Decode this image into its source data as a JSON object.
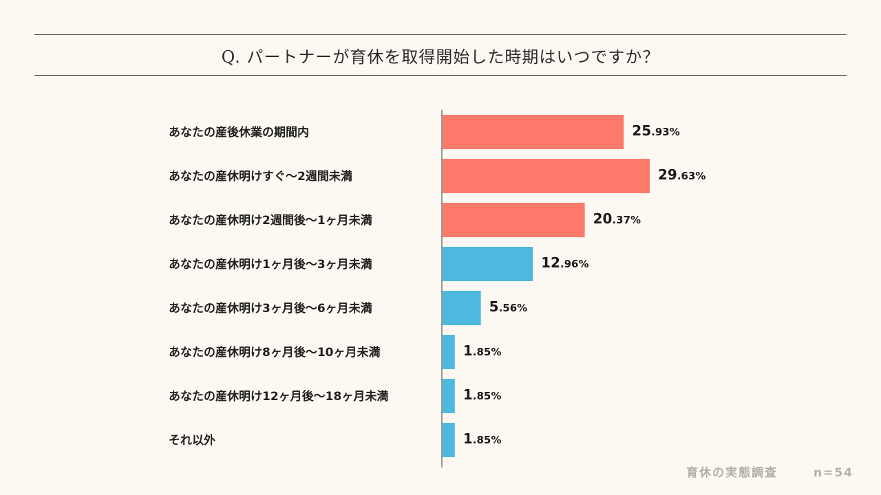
{
  "title": "Q. パートナーが育休を取得開始した時期はいつですか？",
  "footer": {
    "survey": "育休の実態調査",
    "n": "n=54"
  },
  "colors": {
    "red": "#fd7a6b",
    "blue": "#4eb9e0"
  },
  "chart_data": {
    "type": "bar",
    "orientation": "horizontal",
    "categories": [
      "あなたの産後休業の期間内",
      "あなたの産休明けすぐ〜2週間未満",
      "あなたの産休明け2週間後〜1ヶ月未満",
      "あなたの産休明け1ヶ月後〜3ヶ月未満",
      "あなたの産休明け3ヶ月後〜6ヶ月未満",
      "あなたの産休明け8ヶ月後〜10ヶ月未満",
      "あなたの産休明け12ヶ月後〜18ヶ月未満",
      "それ以外"
    ],
    "values": [
      25.93,
      29.63,
      20.37,
      12.96,
      5.56,
      1.85,
      1.85,
      1.85
    ],
    "value_labels": [
      "25.93%",
      "29.63%",
      "20.37%",
      "12.96%",
      "5.56%",
      "1.85%",
      "1.85%",
      "1.85%"
    ],
    "bar_colors": [
      "red",
      "red",
      "red",
      "blue",
      "blue",
      "blue",
      "blue",
      "blue"
    ],
    "title": "Q. パートナーが育休を取得開始した時期はいつですか？",
    "xlabel": "",
    "ylabel": "",
    "xlim": [
      0,
      29.63
    ],
    "grid": false,
    "legend": "none"
  }
}
